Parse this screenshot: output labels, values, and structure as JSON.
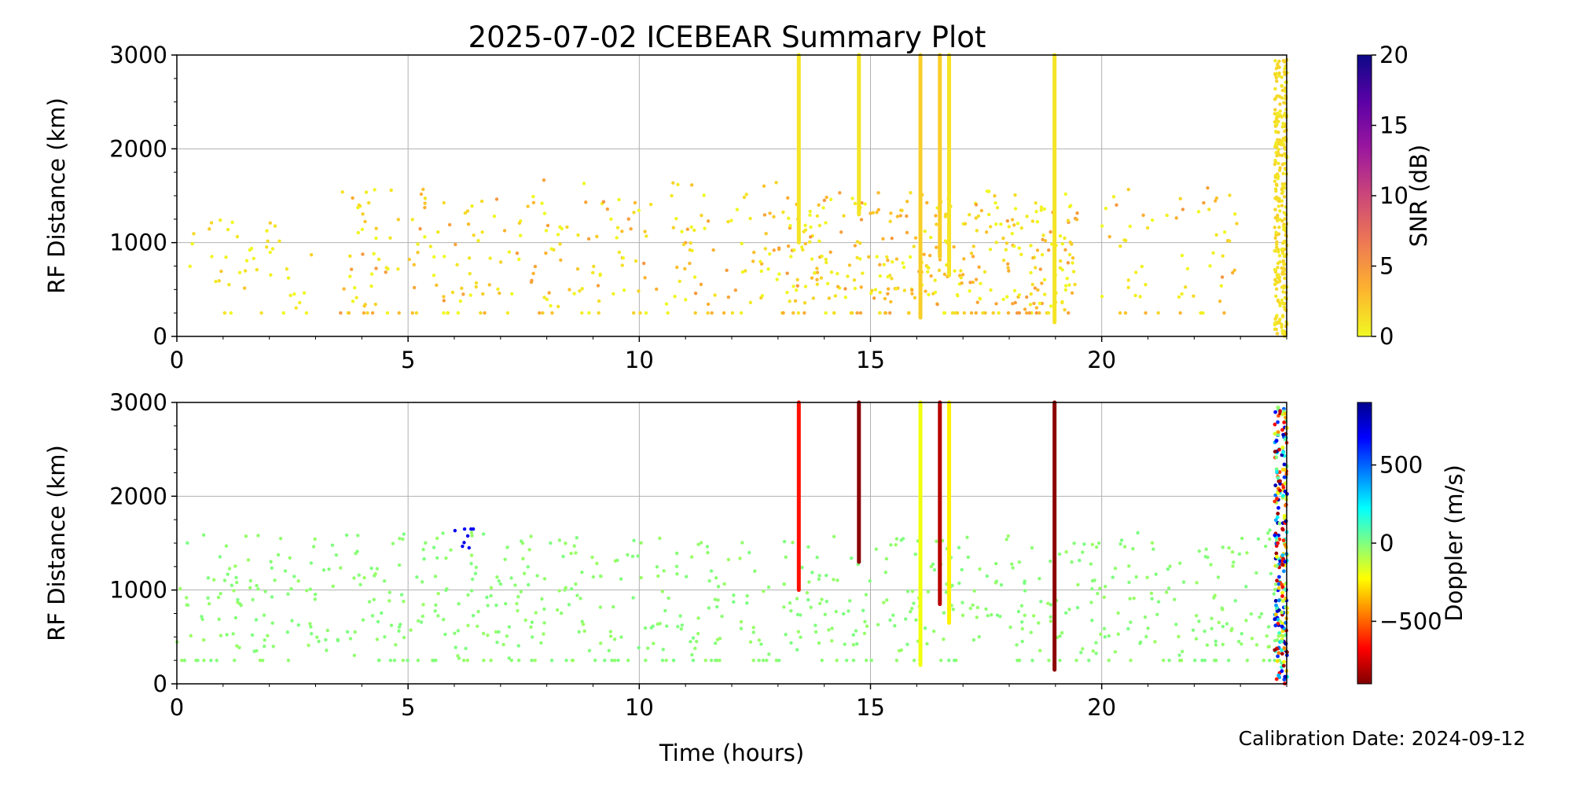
{
  "figure": {
    "title": "2025-07-02 ICEBEAR Summary Plot",
    "xlabel": "Time (hours)",
    "calibration": "Calibration Date: 2024-09-12"
  },
  "colors": {
    "grid": "#b0b0b0",
    "frame": "#000000"
  },
  "chart_data": [
    {
      "type": "scatter",
      "panel": "top",
      "ylabel": "RF Distance (km)",
      "xlim": [
        0,
        24
      ],
      "ylim": [
        0,
        3000
      ],
      "xticks": [
        0,
        5,
        10,
        15,
        20
      ],
      "yticks": [
        0,
        1000,
        2000,
        3000
      ],
      "grid": true,
      "colorbar": {
        "label": "SNR (dB)",
        "range": [
          0,
          20
        ],
        "ticks": [
          0,
          5,
          10,
          15,
          20
        ],
        "colormap": "plasma_r",
        "stops": [
          "#f0f921",
          "#fdb32f",
          "#ed7953",
          "#cc4778",
          "#9c179e",
          "#5c01a6",
          "#0d0887"
        ]
      },
      "streaks": [
        {
          "x": 13.45,
          "y0": 1000,
          "y1": 3000,
          "snr": 1
        },
        {
          "x": 14.75,
          "y0": 1300,
          "y1": 3000,
          "snr": 1
        },
        {
          "x": 16.08,
          "y0": 200,
          "y1": 3000,
          "snr": 2
        },
        {
          "x": 16.5,
          "y0": 850,
          "y1": 3000,
          "snr": 2
        },
        {
          "x": 16.7,
          "y0": 650,
          "y1": 3000,
          "snr": 1
        },
        {
          "x": 18.98,
          "y0": 150,
          "y1": 3000,
          "snr": 1
        },
        {
          "x": 23.8,
          "y0": 0,
          "y1": 2950,
          "snr": 0.5
        },
        {
          "x": 23.95,
          "y0": 0,
          "y1": 2950,
          "snr": 0.5
        }
      ],
      "point_groups": [
        {
          "x_range": [
            0,
            3
          ],
          "y_range": [
            250,
            1500
          ],
          "n": 45,
          "snr_range": [
            0,
            3
          ],
          "note": "sparse scatter"
        },
        {
          "x_range": [
            3.5,
            13
          ],
          "y_range": [
            250,
            1900
          ],
          "n": 260,
          "snr_range": [
            0,
            5
          ]
        },
        {
          "x_range": [
            13,
            19.5
          ],
          "y_range": [
            250,
            1800
          ],
          "n": 380,
          "snr_range": [
            0,
            5
          ]
        },
        {
          "x_range": [
            20,
            23
          ],
          "y_range": [
            250,
            1800
          ],
          "n": 60,
          "snr_range": [
            0,
            5
          ]
        }
      ]
    },
    {
      "type": "scatter",
      "panel": "bottom",
      "ylabel": "RF Distance (km)",
      "xlim": [
        0,
        24
      ],
      "ylim": [
        0,
        3000
      ],
      "xticks": [
        0,
        5,
        10,
        15,
        20
      ],
      "yticks": [
        0,
        1000,
        2000,
        3000
      ],
      "grid": true,
      "colorbar": {
        "label": "Doppler (m/s)",
        "range": [
          -900,
          900
        ],
        "ticks": [
          -500,
          0,
          500
        ],
        "tick_labels": [
          "−500",
          "0",
          "500"
        ],
        "colormap": "jet_r",
        "stops": [
          "#800000",
          "#ff0000",
          "#ff8000",
          "#ffff00",
          "#80ff80",
          "#00ffff",
          "#0080ff",
          "#0000ff",
          "#00008f"
        ]
      },
      "streaks": [
        {
          "x": 13.45,
          "y0": 1000,
          "y1": 3000,
          "doppler": -650
        },
        {
          "x": 14.75,
          "y0": 1300,
          "y1": 3000,
          "doppler": -880
        },
        {
          "x": 16.08,
          "y0": 200,
          "y1": 3000,
          "doppler": -200
        },
        {
          "x": 16.5,
          "y0": 850,
          "y1": 3000,
          "doppler": -800
        },
        {
          "x": 16.7,
          "y0": 650,
          "y1": 3000,
          "doppler": -250
        },
        {
          "x": 18.98,
          "y0": 150,
          "y1": 3000,
          "doppler": -880
        },
        {
          "x": 23.8,
          "y0": 0,
          "y1": 2950,
          "doppler": 0
        },
        {
          "x": 23.95,
          "y0": 0,
          "y1": 2950,
          "doppler": 0
        }
      ],
      "point_groups": [
        {
          "x_range": [
            0,
            24
          ],
          "y_range": [
            250,
            1900
          ],
          "n": 745,
          "doppler": -20,
          "note": "mostly green, near-zero Doppler"
        },
        {
          "x_range": [
            6.0,
            6.5
          ],
          "y_range": [
            1450,
            1650
          ],
          "n": 8,
          "doppler": 700,
          "note": "blue cluster"
        }
      ]
    }
  ]
}
